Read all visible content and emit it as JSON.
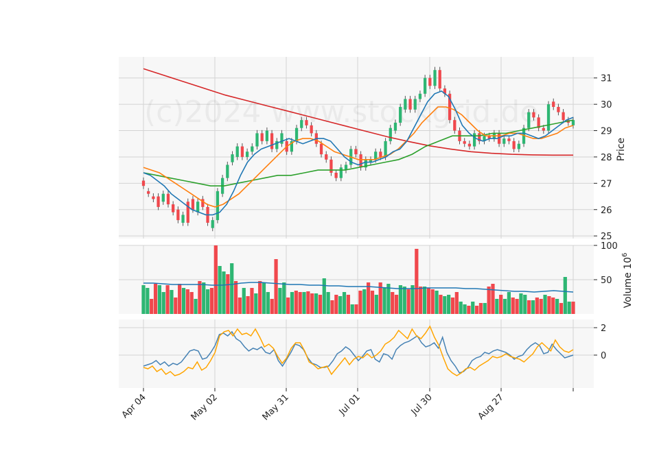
{
  "watermark": "(c)2024 www.stockgrid.de",
  "colors": {
    "up": "#2eb673",
    "down": "#f0484d",
    "grid": "#d3d3d3",
    "panel_bg": "#f7f7f7",
    "ma_short": "#1f77b4",
    "ma_mid": "#ff7f0e",
    "ma_long": "#2ca02c",
    "ma_200": "#d62728",
    "vol_avg": "#1f77b4",
    "osc_a": "#4682b4",
    "osc_b": "#ffa500"
  },
  "x_labels": [
    "Apr 04",
    "May 02",
    "May 31",
    "Jul 01",
    "Jul 30",
    "Aug 27"
  ],
  "chart_data": [
    {
      "type": "candlestick",
      "panel": "price",
      "ylabel": "Price",
      "ylim": [
        24.9,
        31.8
      ],
      "yticks": [
        25,
        26,
        27,
        28,
        29,
        30,
        31
      ],
      "x": [
        "Apr 04",
        "May 02",
        "May 31",
        "Jul 01",
        "Jul 30",
        "Aug 27"
      ],
      "ohlc_close": [
        26.9,
        26.6,
        26.4,
        26.1,
        26.6,
        26.2,
        25.9,
        25.6,
        25.8,
        25.5,
        26.0,
        26.3,
        26.1,
        25.5,
        25.6,
        26.7,
        27.2,
        27.7,
        28.1,
        28.4,
        28.0,
        28.2,
        28.4,
        28.9,
        28.6,
        29.0,
        28.3,
        28.6,
        28.9,
        28.2,
        28.6,
        29.1,
        29.4,
        29.2,
        28.9,
        28.5,
        28.1,
        27.9,
        27.4,
        27.2,
        27.6,
        27.7,
        28.3,
        28.1,
        27.6,
        27.9,
        27.9,
        28.2,
        28.0,
        28.6,
        29.1,
        29.3,
        29.9,
        30.2,
        29.8,
        30.2,
        30.4,
        31.0,
        30.7,
        31.3,
        30.6,
        30.4,
        29.4,
        29.0,
        28.6,
        28.5,
        28.4,
        28.9,
        28.6,
        28.8,
        28.7,
        28.9,
        28.5,
        28.7,
        28.6,
        28.3,
        28.5,
        29.1,
        29.7,
        29.5,
        29.1,
        29.0,
        30.0,
        29.9,
        29.7,
        29.4,
        29.3,
        29.4
      ],
      "ohlc_open": [
        27.1,
        26.7,
        26.5,
        26.5,
        26.3,
        26.6,
        26.2,
        26.0,
        25.5,
        26.3,
        26.4,
        25.9,
        26.4,
        26.1,
        25.3,
        25.6,
        26.6,
        27.2,
        27.8,
        28.0,
        28.4,
        28.0,
        28.2,
        28.4,
        28.9,
        28.6,
        28.9,
        28.3,
        28.5,
        28.6,
        28.2,
        28.6,
        29.1,
        29.4,
        29.2,
        28.9,
        28.5,
        28.1,
        27.9,
        27.4,
        27.2,
        27.5,
        27.7,
        28.3,
        28.1,
        27.6,
        27.8,
        27.9,
        28.2,
        28.0,
        28.6,
        29.0,
        29.3,
        29.8,
        30.2,
        29.8,
        30.2,
        30.4,
        31.0,
        30.7,
        31.3,
        30.6,
        30.4,
        29.4,
        29.0,
        28.6,
        28.5,
        28.4,
        28.9,
        28.6,
        28.8,
        28.7,
        28.9,
        28.5,
        28.7,
        28.6,
        28.3,
        28.5,
        29.1,
        29.7,
        29.5,
        29.1,
        29.0,
        30.1,
        29.9,
        29.7,
        29.4,
        29.2
      ],
      "ma_short": [
        27.4,
        27.3,
        27.1,
        26.9,
        26.6,
        26.4,
        26.2,
        26.0,
        25.9,
        25.8,
        25.8,
        25.9,
        26.2,
        26.7,
        27.3,
        27.8,
        28.1,
        28.3,
        28.4,
        28.5,
        28.6,
        28.7,
        28.6,
        28.5,
        28.6,
        28.7,
        28.7,
        28.6,
        28.3,
        28.0,
        27.8,
        27.7,
        27.8,
        27.8,
        27.9,
        28.0,
        28.2,
        28.3,
        28.6,
        29.1,
        29.6,
        30.1,
        30.4,
        30.5,
        30.3,
        29.8,
        29.2,
        28.9,
        28.7,
        28.6,
        28.7,
        28.7,
        28.8,
        28.8,
        28.9,
        28.9,
        28.8,
        28.7,
        28.8,
        29.0,
        29.2,
        29.4,
        29.5
      ],
      "ma_mid": [
        27.6,
        27.5,
        27.4,
        27.2,
        27.0,
        26.8,
        26.6,
        26.4,
        26.2,
        26.1,
        26.2,
        26.4,
        26.6,
        26.9,
        27.2,
        27.5,
        27.8,
        28.1,
        28.4,
        28.6,
        28.7,
        28.7,
        28.6,
        28.4,
        28.2,
        28.1,
        28.0,
        27.9,
        27.9,
        27.9,
        28.0,
        28.1,
        28.3,
        28.6,
        28.9,
        29.3,
        29.6,
        29.9,
        29.9,
        29.8,
        29.6,
        29.3,
        29.0,
        28.8,
        28.8,
        28.8,
        28.9,
        28.9,
        28.8,
        28.7,
        28.7,
        28.8,
        28.9,
        29.1,
        29.2
      ],
      "ma_long": [
        27.4,
        27.3,
        27.2,
        27.1,
        27.0,
        26.9,
        26.9,
        27.0,
        27.1,
        27.2,
        27.3,
        27.3,
        27.4,
        27.5,
        27.5,
        27.5,
        27.6,
        27.7,
        27.8,
        27.9,
        28.1,
        28.4,
        28.6,
        28.8,
        28.8,
        28.8,
        28.9,
        28.9,
        29.0,
        29.1,
        29.2,
        29.3,
        29.4
      ],
      "ma_200": [
        31.35,
        31.1,
        30.85,
        30.6,
        30.35,
        30.15,
        29.95,
        29.75,
        29.55,
        29.35,
        29.15,
        28.95,
        28.75,
        28.58,
        28.42,
        28.3,
        28.2,
        28.14,
        28.1,
        28.08,
        28.07,
        28.07
      ]
    },
    {
      "type": "bar",
      "panel": "volume",
      "ylabel": "Volume 10^6",
      "ylim": [
        0,
        100
      ],
      "yticks": [
        50,
        100
      ],
      "values": [
        42,
        38,
        22,
        44,
        42,
        32,
        42,
        35,
        24,
        44,
        38,
        36,
        32,
        22,
        48,
        46,
        36,
        38,
        100,
        70,
        62,
        58,
        74,
        48,
        24,
        38,
        26,
        38,
        30,
        48,
        45,
        32,
        22,
        80,
        38,
        46,
        24,
        32,
        34,
        32,
        32,
        33,
        30,
        30,
        28,
        52,
        32,
        20,
        28,
        26,
        32,
        28,
        14,
        14,
        34,
        36,
        46,
        34,
        28,
        46,
        38,
        44,
        32,
        28,
        42,
        40,
        36,
        42,
        95,
        40,
        40,
        38,
        36,
        34,
        28,
        26,
        28,
        24,
        32,
        18,
        14,
        12,
        18,
        12,
        16,
        16,
        40,
        44,
        22,
        28,
        22,
        32,
        24,
        22,
        30,
        28,
        20,
        20,
        24,
        22,
        28,
        26,
        24,
        22,
        16,
        54,
        18,
        18
      ],
      "ma": [
        45,
        45,
        44,
        43,
        43,
        43,
        43,
        42,
        42,
        43,
        45,
        46,
        46,
        45,
        44,
        43,
        43,
        42,
        42,
        41,
        41,
        40,
        40,
        40,
        39,
        38,
        37,
        37,
        37,
        38,
        38,
        38,
        38,
        37,
        37,
        36,
        35,
        34,
        33,
        33,
        32,
        33,
        34,
        33,
        32
      ]
    },
    {
      "type": "line",
      "panel": "oscillator",
      "ylim": [
        -2.4,
        2.6
      ],
      "yticks": [
        0,
        2
      ],
      "series_a": [
        -0.8,
        -0.7,
        -0.6,
        -0.4,
        -0.7,
        -0.5,
        -0.8,
        -0.6,
        -0.7,
        -0.5,
        -0.1,
        0.3,
        0.4,
        0.3,
        -0.3,
        -0.2,
        0.2,
        0.7,
        1.5,
        1.6,
        1.4,
        1.7,
        1.2,
        1.0,
        0.6,
        0.3,
        0.5,
        0.4,
        0.6,
        0.2,
        0.1,
        0.4,
        -0.4,
        -0.8,
        -0.3,
        0.2,
        0.8,
        0.7,
        0.4,
        -0.2,
        -0.6,
        -0.7,
        -0.9,
        -0.9,
        -0.8,
        -0.4,
        0.1,
        0.3,
        0.6,
        0.4,
        0.0,
        -0.4,
        -0.1,
        0.3,
        0.4,
        -0.3,
        -0.5,
        0.1,
        0.0,
        -0.3,
        0.4,
        0.7,
        0.9,
        1.0,
        1.2,
        1.4,
        0.9,
        0.6,
        0.7,
        0.9,
        0.5,
        1.3,
        0.2,
        -0.4,
        -0.8,
        -1.3,
        -1.2,
        -0.9,
        -0.4,
        -0.2,
        -0.1,
        0.2,
        0.1,
        0.3,
        0.4,
        0.3,
        0.2,
        0.0,
        -0.3,
        -0.1,
        0.0,
        0.4,
        0.7,
        0.9,
        0.7,
        0.1,
        0.2,
        0.8,
        0.4,
        0.1,
        -0.2,
        -0.1,
        0.0
      ],
      "series_b": [
        -0.9,
        -1.0,
        -0.8,
        -1.2,
        -1.0,
        -1.4,
        -1.2,
        -1.5,
        -1.4,
        -1.2,
        -0.9,
        -1.0,
        -0.5,
        -1.1,
        -0.9,
        -0.4,
        0.2,
        1.4,
        1.7,
        1.8,
        1.4,
        1.9,
        1.5,
        1.6,
        1.4,
        1.9,
        1.3,
        0.6,
        0.8,
        0.5,
        -0.1,
        -0.6,
        -0.2,
        0.5,
        0.9,
        0.9,
        0.3,
        -0.5,
        -0.7,
        -1.0,
        -0.9,
        -0.8,
        -1.4,
        -1.0,
        -0.6,
        -0.2,
        -0.7,
        -0.3,
        -0.1,
        -0.2,
        0.1,
        -0.2,
        0.0,
        0.3,
        0.8,
        1.0,
        1.3,
        1.8,
        1.5,
        1.2,
        1.9,
        1.4,
        1.2,
        1.6,
        2.1,
        1.3,
        0.7,
        -0.2,
        -1.0,
        -1.3,
        -1.5,
        -1.3,
        -1.0,
        -0.9,
        -1.1,
        -0.8,
        -0.6,
        -0.4,
        -0.1,
        -0.2,
        -0.1,
        0.1,
        -0.1,
        -0.2,
        -0.3,
        -0.5,
        -0.2,
        0.1,
        0.6,
        0.9,
        0.6,
        0.3,
        1.1,
        0.6,
        0.3,
        0.2,
        0.4
      ]
    }
  ]
}
